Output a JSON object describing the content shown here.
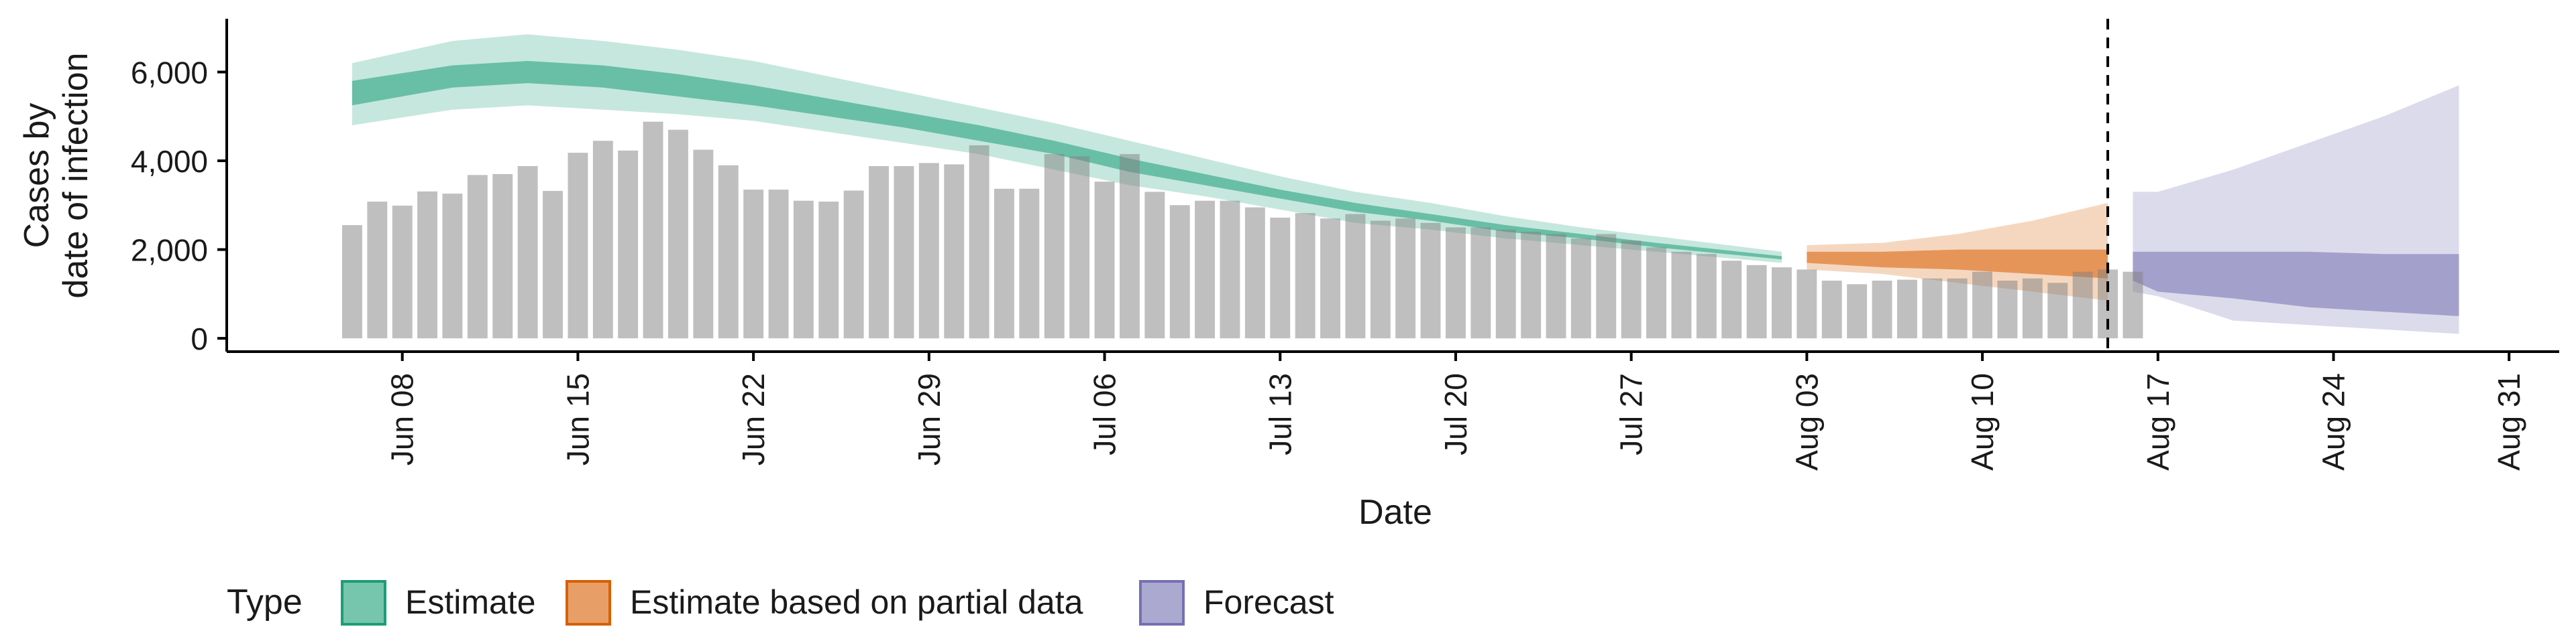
{
  "chart_data": {
    "type": "area",
    "ylabel_lines": [
      "Cases by",
      "date of infection"
    ],
    "xlabel": "Date",
    "ylim": [
      -300,
      7200
    ],
    "yticks": [
      0,
      2000,
      4000,
      6000
    ],
    "ytick_labels": [
      "0",
      "2,000",
      "4,000",
      "6,000"
    ],
    "xlim": [
      "2020-06-01",
      "2020-09-02"
    ],
    "xticks": [
      "2020-06-08",
      "2020-06-15",
      "2020-06-22",
      "2020-06-29",
      "2020-07-06",
      "2020-07-13",
      "2020-07-20",
      "2020-07-27",
      "2020-08-03",
      "2020-08-10",
      "2020-08-17",
      "2020-08-24",
      "2020-08-31"
    ],
    "xtick_labels": [
      "Jun 08",
      "Jun 15",
      "Jun 22",
      "Jun 29",
      "Jul 06",
      "Jul 13",
      "Jul 20",
      "Jul 27",
      "Aug 03",
      "Aug 10",
      "Aug 17",
      "Aug 24",
      "Aug 31"
    ],
    "forecast_date": "2020-08-15",
    "bars": {
      "start": "2020-06-06",
      "values": [
        2550,
        3080,
        2990,
        3310,
        3260,
        3680,
        3700,
        3880,
        3320,
        4180,
        4450,
        4230,
        4880,
        4700,
        4250,
        3900,
        3350,
        3350,
        3100,
        3080,
        3330,
        3880,
        3880,
        3950,
        3920,
        4350,
        3370,
        3370,
        4150,
        4100,
        3530,
        4150,
        3300,
        3000,
        3100,
        3100,
        2950,
        2720,
        2820,
        2700,
        2800,
        2650,
        2700,
        2600,
        2500,
        2500,
        2450,
        2400,
        2350,
        2250,
        2350,
        2200,
        2050,
        1950,
        1900,
        1750,
        1650,
        1600,
        1550,
        1300,
        1220,
        1300,
        1320,
        1350,
        1350,
        1500,
        1300,
        1350,
        1250,
        1500,
        1550,
        1500
      ]
    },
    "series": [
      {
        "name": "Estimate",
        "color": "#1b9e77",
        "x": [
          "2020-06-06",
          "2020-06-10",
          "2020-06-13",
          "2020-06-16",
          "2020-06-19",
          "2020-06-22",
          "2020-06-25",
          "2020-06-28",
          "2020-07-01",
          "2020-07-04",
          "2020-07-07",
          "2020-07-10",
          "2020-07-13",
          "2020-07-16",
          "2020-07-19",
          "2020-07-22",
          "2020-07-25",
          "2020-07-28",
          "2020-08-02"
        ],
        "lower90": [
          4800,
          5150,
          5250,
          5150,
          5050,
          4900,
          4650,
          4400,
          4150,
          3800,
          3450,
          3200,
          2900,
          2600,
          2450,
          2250,
          2100,
          1950,
          1700
        ],
        "lower50": [
          5250,
          5650,
          5750,
          5650,
          5450,
          5250,
          5000,
          4750,
          4450,
          4150,
          3750,
          3450,
          3150,
          2850,
          2650,
          2400,
          2250,
          2050,
          1780
        ],
        "upper50": [
          5800,
          6150,
          6250,
          6150,
          5950,
          5700,
          5400,
          5100,
          4800,
          4450,
          4050,
          3700,
          3350,
          3050,
          2800,
          2550,
          2350,
          2150,
          1850
        ],
        "upper90": [
          6200,
          6700,
          6850,
          6700,
          6500,
          6250,
          5900,
          5550,
          5200,
          4850,
          4450,
          4050,
          3650,
          3300,
          3050,
          2750,
          2500,
          2300,
          1950
        ]
      },
      {
        "name": "Estimate based on partial data",
        "color": "#d95f02",
        "x": [
          "2020-08-03",
          "2020-08-06",
          "2020-08-09",
          "2020-08-12",
          "2020-08-15"
        ],
        "lower90": [
          1550,
          1450,
          1250,
          1050,
          850
        ],
        "lower50": [
          1700,
          1600,
          1550,
          1450,
          1350
        ],
        "upper50": [
          1950,
          1950,
          2000,
          2000,
          2000
        ],
        "upper90": [
          2100,
          2150,
          2350,
          2650,
          3050
        ]
      },
      {
        "name": "Forecast",
        "color": "#7570b3",
        "x": [
          "2020-08-16",
          "2020-08-17",
          "2020-08-20",
          "2020-08-23",
          "2020-08-26",
          "2020-08-29"
        ],
        "lower90": [
          1050,
          950,
          400,
          300,
          200,
          100
        ],
        "lower50": [
          1300,
          1050,
          900,
          700,
          600,
          500
        ],
        "upper50": [
          1950,
          1950,
          1950,
          1950,
          1900,
          1900
        ],
        "upper90": [
          3300,
          3300,
          3800,
          4400,
          5000,
          5700
        ]
      }
    ],
    "legend": {
      "title": "Type",
      "position": "bottom",
      "items": [
        "Estimate",
        "Estimate based on partial data",
        "Forecast"
      ]
    }
  }
}
